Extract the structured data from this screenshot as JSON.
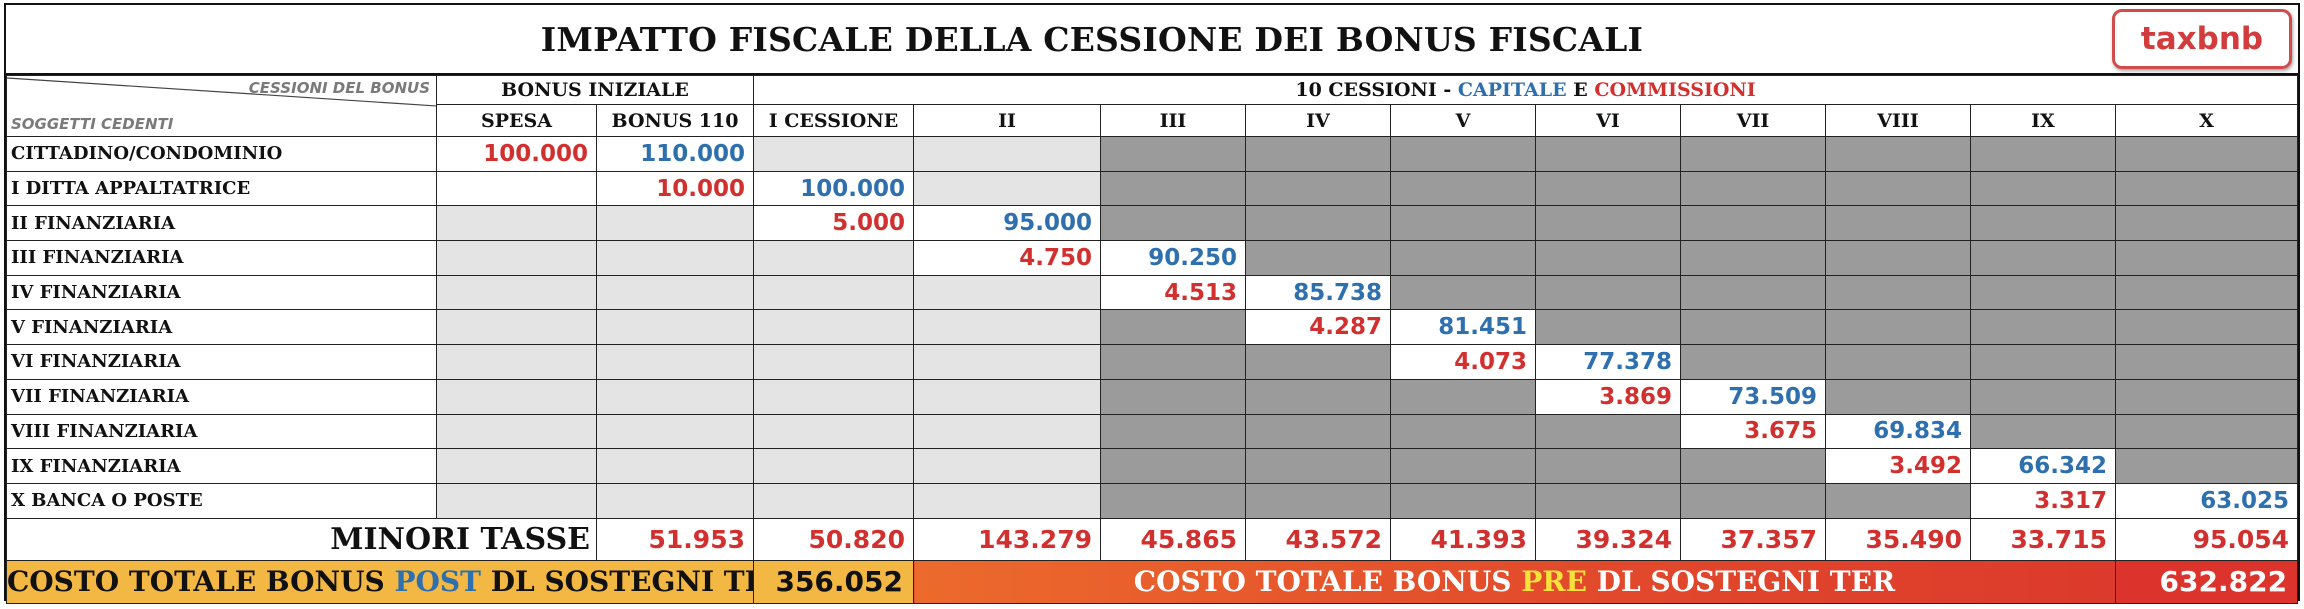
{
  "title": "IMPATTO FISCALE DELLA CESSIONE DEI BONUS FISCALI",
  "logo": "taxbnb",
  "corner": {
    "top": "CESSIONI DEL BONUS",
    "bottom": "SOGGETTI CEDENTI"
  },
  "groups": {
    "initial": "BONUS INIZIALE",
    "cessions_prefix": "10 CESSIONI - ",
    "cessions_capitale": "CAPITALE",
    "cessions_e": " E ",
    "cessions_commissioni": "COMMISSIONI"
  },
  "columns": [
    "SPESA",
    "BONUS 110",
    "I CESSIONE",
    "II",
    "III",
    "IV",
    "V",
    "VI",
    "VII",
    "VIII",
    "IX",
    "X"
  ],
  "rows": [
    {
      "label": "CITTADINO/CONDOMINIO",
      "cells": [
        {
          "v": "100.000",
          "c": "red",
          "bg": "white"
        },
        {
          "v": "110.000",
          "c": "blue",
          "bg": "white"
        },
        {
          "v": "",
          "bg": "light"
        },
        {
          "v": "",
          "bg": "light"
        },
        {
          "v": "",
          "bg": "dark"
        },
        {
          "v": "",
          "bg": "dark"
        },
        {
          "v": "",
          "bg": "dark"
        },
        {
          "v": "",
          "bg": "dark"
        },
        {
          "v": "",
          "bg": "dark"
        },
        {
          "v": "",
          "bg": "dark"
        },
        {
          "v": "",
          "bg": "dark"
        },
        {
          "v": "",
          "bg": "dark"
        }
      ]
    },
    {
      "label": "I DITTA APPALTATRICE",
      "cells": [
        {
          "v": "",
          "bg": "white"
        },
        {
          "v": "10.000",
          "c": "red",
          "bg": "white"
        },
        {
          "v": "100.000",
          "c": "blue",
          "bg": "white"
        },
        {
          "v": "",
          "bg": "light"
        },
        {
          "v": "",
          "bg": "dark"
        },
        {
          "v": "",
          "bg": "dark"
        },
        {
          "v": "",
          "bg": "dark"
        },
        {
          "v": "",
          "bg": "dark"
        },
        {
          "v": "",
          "bg": "dark"
        },
        {
          "v": "",
          "bg": "dark"
        },
        {
          "v": "",
          "bg": "dark"
        },
        {
          "v": "",
          "bg": "dark"
        }
      ]
    },
    {
      "label": "II FINANZIARIA",
      "cells": [
        {
          "v": "",
          "bg": "light"
        },
        {
          "v": "",
          "bg": "light"
        },
        {
          "v": "5.000",
          "c": "red",
          "bg": "white"
        },
        {
          "v": "95.000",
          "c": "blue",
          "bg": "white"
        },
        {
          "v": "",
          "bg": "dark"
        },
        {
          "v": "",
          "bg": "dark"
        },
        {
          "v": "",
          "bg": "dark"
        },
        {
          "v": "",
          "bg": "dark"
        },
        {
          "v": "",
          "bg": "dark"
        },
        {
          "v": "",
          "bg": "dark"
        },
        {
          "v": "",
          "bg": "dark"
        },
        {
          "v": "",
          "bg": "dark"
        }
      ]
    },
    {
      "label": "III FINANZIARIA",
      "cells": [
        {
          "v": "",
          "bg": "light"
        },
        {
          "v": "",
          "bg": "light"
        },
        {
          "v": "",
          "bg": "light"
        },
        {
          "v": "4.750",
          "c": "red",
          "bg": "white"
        },
        {
          "v": "90.250",
          "c": "blue",
          "bg": "white"
        },
        {
          "v": "",
          "bg": "dark"
        },
        {
          "v": "",
          "bg": "dark"
        },
        {
          "v": "",
          "bg": "dark"
        },
        {
          "v": "",
          "bg": "dark"
        },
        {
          "v": "",
          "bg": "dark"
        },
        {
          "v": "",
          "bg": "dark"
        },
        {
          "v": "",
          "bg": "dark"
        }
      ]
    },
    {
      "label": "IV FINANZIARIA",
      "cells": [
        {
          "v": "",
          "bg": "light"
        },
        {
          "v": "",
          "bg": "light"
        },
        {
          "v": "",
          "bg": "light"
        },
        {
          "v": "",
          "bg": "light"
        },
        {
          "v": "4.513",
          "c": "red",
          "bg": "white"
        },
        {
          "v": "85.738",
          "c": "blue",
          "bg": "white"
        },
        {
          "v": "",
          "bg": "dark"
        },
        {
          "v": "",
          "bg": "dark"
        },
        {
          "v": "",
          "bg": "dark"
        },
        {
          "v": "",
          "bg": "dark"
        },
        {
          "v": "",
          "bg": "dark"
        },
        {
          "v": "",
          "bg": "dark"
        }
      ]
    },
    {
      "label": "V FINANZIARIA",
      "cells": [
        {
          "v": "",
          "bg": "light"
        },
        {
          "v": "",
          "bg": "light"
        },
        {
          "v": "",
          "bg": "light"
        },
        {
          "v": "",
          "bg": "light"
        },
        {
          "v": "",
          "bg": "dark"
        },
        {
          "v": "4.287",
          "c": "red",
          "bg": "white"
        },
        {
          "v": "81.451",
          "c": "blue",
          "bg": "white"
        },
        {
          "v": "",
          "bg": "dark"
        },
        {
          "v": "",
          "bg": "dark"
        },
        {
          "v": "",
          "bg": "dark"
        },
        {
          "v": "",
          "bg": "dark"
        },
        {
          "v": "",
          "bg": "dark"
        }
      ]
    },
    {
      "label": "VI FINANZIARIA",
      "cells": [
        {
          "v": "",
          "bg": "light"
        },
        {
          "v": "",
          "bg": "light"
        },
        {
          "v": "",
          "bg": "light"
        },
        {
          "v": "",
          "bg": "light"
        },
        {
          "v": "",
          "bg": "dark"
        },
        {
          "v": "",
          "bg": "dark"
        },
        {
          "v": "4.073",
          "c": "red",
          "bg": "white"
        },
        {
          "v": "77.378",
          "c": "blue",
          "bg": "white"
        },
        {
          "v": "",
          "bg": "dark"
        },
        {
          "v": "",
          "bg": "dark"
        },
        {
          "v": "",
          "bg": "dark"
        },
        {
          "v": "",
          "bg": "dark"
        }
      ]
    },
    {
      "label": "VII FINANZIARIA",
      "cells": [
        {
          "v": "",
          "bg": "light"
        },
        {
          "v": "",
          "bg": "light"
        },
        {
          "v": "",
          "bg": "light"
        },
        {
          "v": "",
          "bg": "light"
        },
        {
          "v": "",
          "bg": "dark"
        },
        {
          "v": "",
          "bg": "dark"
        },
        {
          "v": "",
          "bg": "dark"
        },
        {
          "v": "3.869",
          "c": "red",
          "bg": "white"
        },
        {
          "v": "73.509",
          "c": "blue",
          "bg": "white"
        },
        {
          "v": "",
          "bg": "dark"
        },
        {
          "v": "",
          "bg": "dark"
        },
        {
          "v": "",
          "bg": "dark"
        }
      ]
    },
    {
      "label": "VIII FINANZIARIA",
      "cells": [
        {
          "v": "",
          "bg": "light"
        },
        {
          "v": "",
          "bg": "light"
        },
        {
          "v": "",
          "bg": "light"
        },
        {
          "v": "",
          "bg": "light"
        },
        {
          "v": "",
          "bg": "dark"
        },
        {
          "v": "",
          "bg": "dark"
        },
        {
          "v": "",
          "bg": "dark"
        },
        {
          "v": "",
          "bg": "dark"
        },
        {
          "v": "3.675",
          "c": "red",
          "bg": "white"
        },
        {
          "v": "69.834",
          "c": "blue",
          "bg": "white"
        },
        {
          "v": "",
          "bg": "dark"
        },
        {
          "v": "",
          "bg": "dark"
        }
      ]
    },
    {
      "label": "IX FINANZIARIA",
      "cells": [
        {
          "v": "",
          "bg": "light"
        },
        {
          "v": "",
          "bg": "light"
        },
        {
          "v": "",
          "bg": "light"
        },
        {
          "v": "",
          "bg": "light"
        },
        {
          "v": "",
          "bg": "dark"
        },
        {
          "v": "",
          "bg": "dark"
        },
        {
          "v": "",
          "bg": "dark"
        },
        {
          "v": "",
          "bg": "dark"
        },
        {
          "v": "",
          "bg": "dark"
        },
        {
          "v": "3.492",
          "c": "red",
          "bg": "white"
        },
        {
          "v": "66.342",
          "c": "blue",
          "bg": "white"
        },
        {
          "v": "",
          "bg": "dark"
        }
      ]
    },
    {
      "label": "X BANCA O POSTE",
      "cells": [
        {
          "v": "",
          "bg": "light"
        },
        {
          "v": "",
          "bg": "light"
        },
        {
          "v": "",
          "bg": "light"
        },
        {
          "v": "",
          "bg": "light"
        },
        {
          "v": "",
          "bg": "dark"
        },
        {
          "v": "",
          "bg": "dark"
        },
        {
          "v": "",
          "bg": "dark"
        },
        {
          "v": "",
          "bg": "dark"
        },
        {
          "v": "",
          "bg": "dark"
        },
        {
          "v": "",
          "bg": "dark"
        },
        {
          "v": "3.317",
          "c": "red",
          "bg": "white"
        },
        {
          "v": "63.025",
          "c": "blue",
          "bg": "white"
        }
      ]
    }
  ],
  "minori_tasse": {
    "label": "MINORI TASSE",
    "values": [
      "51.953",
      "50.820",
      "143.279",
      "45.865",
      "43.572",
      "41.393",
      "39.324",
      "37.357",
      "35.490",
      "33.715",
      "95.054"
    ]
  },
  "footer": {
    "post": {
      "pre_text": "COSTO TOTALE BONUS ",
      "keyword": "POST",
      "post_text": " DL SOSTEGNI TER",
      "value": "356.052"
    },
    "pre": {
      "pre_text": "COSTO TOTALE BONUS ",
      "keyword": "PRE",
      "post_text": " DL SOSTEGNI TER",
      "value": "632.822"
    }
  },
  "colors": {
    "blue_values": "#2e6fad",
    "red_values": "#d22f2f",
    "light_cell": "#e4e4e4",
    "dark_cell": "#9b9b9b",
    "post_band": "#f2b843",
    "pre_band": "#dc332c"
  }
}
